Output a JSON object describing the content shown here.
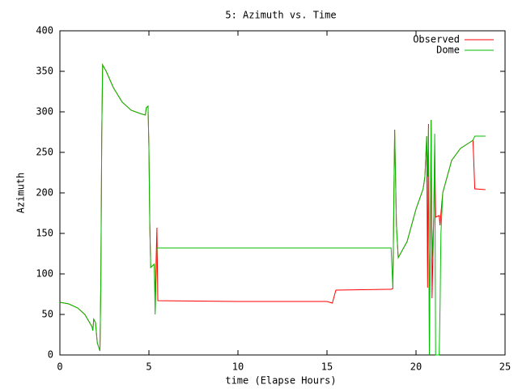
{
  "chart_data": {
    "type": "line",
    "title": "5: Azimuth vs. Time",
    "x_label": "time (Elapse Hours)",
    "y_label": "Azimuth",
    "x": [
      0,
      0.5,
      1.0,
      1.4,
      1.8,
      1.85,
      1.9,
      2.0,
      2.1,
      2.25,
      2.3,
      2.35,
      2.4,
      2.6,
      3.0,
      3.5,
      4.0,
      4.5,
      4.8,
      4.85,
      4.95,
      5.0,
      5.05,
      5.1,
      5.3,
      5.35,
      5.45,
      5.5,
      10,
      15,
      15.3,
      15.5,
      18.4,
      18.6,
      18.7,
      18.8,
      18.9,
      19.0,
      19.5,
      20.0,
      20.4,
      20.5,
      20.6,
      20.65,
      20.7,
      20.75,
      20.85,
      20.9,
      21.0,
      21.05,
      21.1,
      21.3,
      21.35,
      21.4,
      21.5,
      22.0,
      22.5,
      23.0,
      23.2,
      23.3,
      23.9
    ],
    "series": [
      {
        "name": "Observed",
        "color": "#ff0000",
        "values": [
          65,
          63,
          58,
          50,
          35,
          30,
          44,
          40,
          15,
          5,
          90,
          270,
          358,
          350,
          330,
          312,
          302,
          298,
          296,
          305,
          307,
          255,
          160,
          108,
          112,
          70,
          157,
          67,
          66,
          66,
          64,
          80,
          81,
          81,
          82,
          278,
          160,
          120,
          140,
          180,
          205,
          220,
          270,
          83,
          285,
          0,
          290,
          70,
          175,
          260,
          170,
          172,
          160,
          175,
          200,
          240,
          255,
          262,
          265,
          205,
          204
        ]
      },
      {
        "name": "Dome",
        "color": "#00c000",
        "values": [
          65,
          63,
          58,
          50,
          35,
          30,
          44,
          40,
          15,
          5,
          90,
          270,
          358,
          350,
          330,
          312,
          302,
          298,
          296,
          305,
          307,
          255,
          160,
          108,
          112,
          50,
          132,
          132,
          132,
          132,
          132,
          132,
          132,
          132,
          82,
          278,
          160,
          120,
          140,
          180,
          205,
          220,
          270,
          220,
          280,
          0,
          290,
          120,
          170,
          273,
          0,
          0,
          60,
          150,
          200,
          240,
          255,
          262,
          265,
          270,
          270
        ]
      }
    ],
    "xlim": [
      0,
      25
    ],
    "xticks": [
      0,
      5,
      10,
      15,
      20,
      25
    ],
    "ylim": [
      0,
      400
    ],
    "yticks": [
      0,
      50,
      100,
      150,
      200,
      250,
      300,
      350,
      400
    ],
    "legend": "top-right"
  }
}
